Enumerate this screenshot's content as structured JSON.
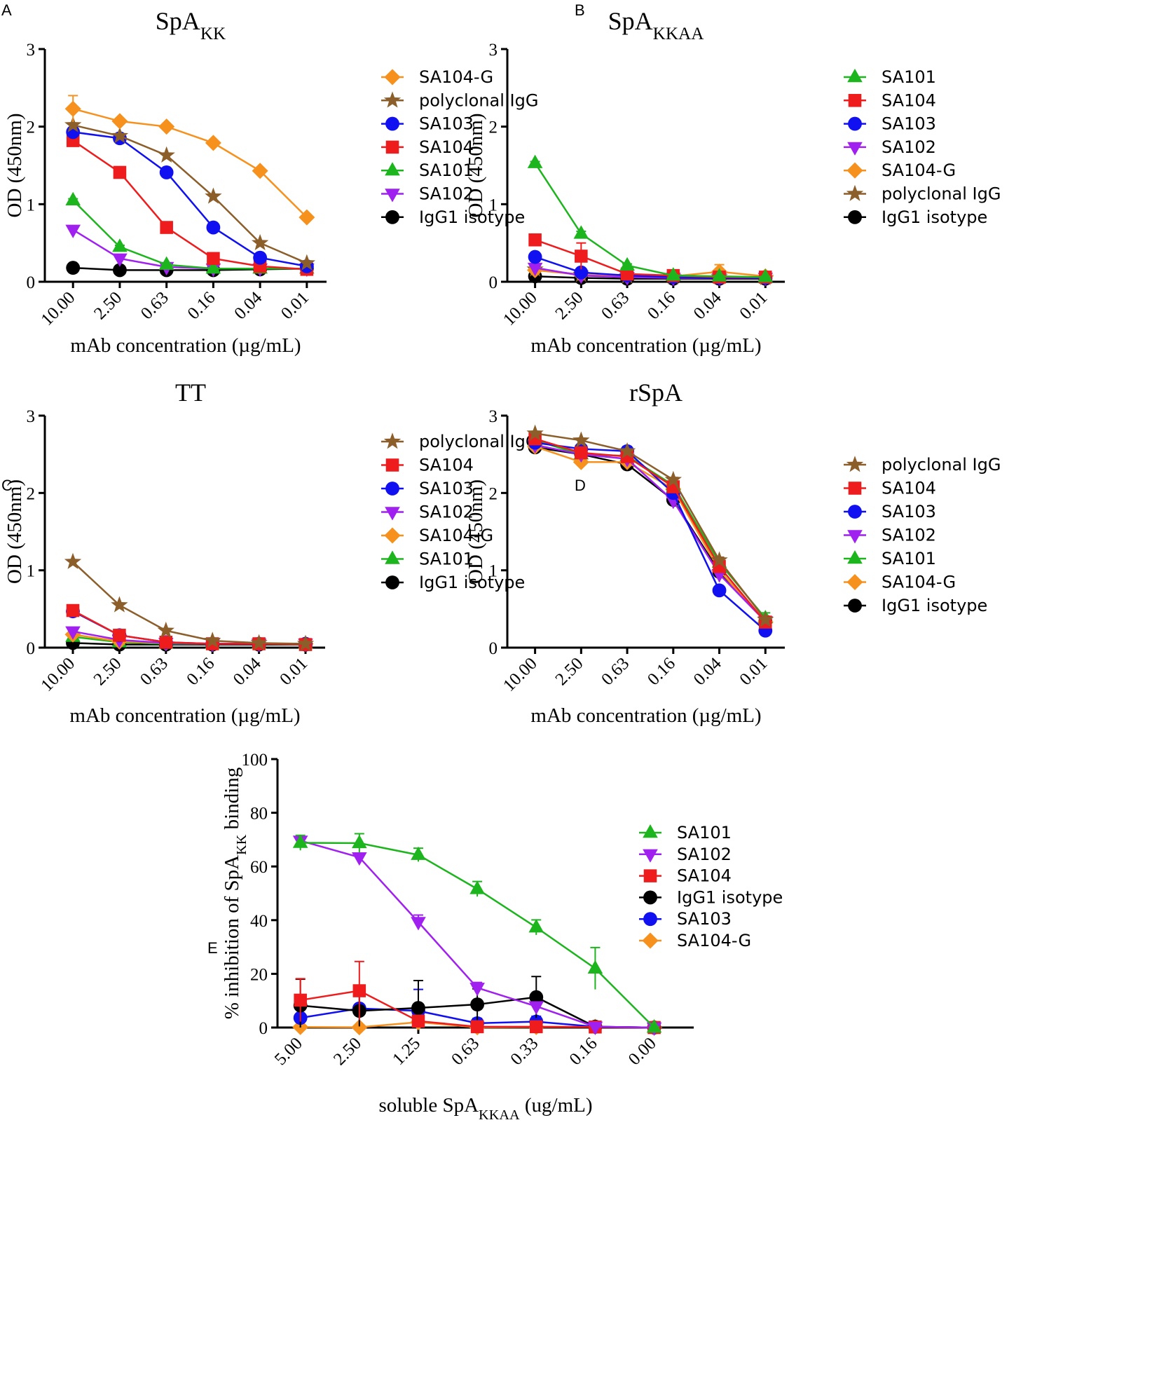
{
  "figure": {
    "panels": [
      "A",
      "B",
      "C",
      "D",
      "E"
    ]
  },
  "colors": {
    "SA104-G": "#F7911E",
    "polyclonal IgG": "#8B5E2A",
    "SA103": "#1010F0",
    "SA104": "#EE1C1C",
    "SA101": "#1DB51D",
    "SA102": "#A020F0",
    "IgG1 isotype": "#000000"
  },
  "markers": {
    "SA104-G": "diamond",
    "polyclonal IgG": "star",
    "SA103": "circle",
    "SA104": "square",
    "SA101": "triangle-up",
    "SA102": "triangle-down",
    "IgG1 isotype": "circle"
  },
  "chart_data": [
    {
      "panel": "A",
      "type": "line",
      "title": "SpA",
      "title_sub": "KK",
      "xlabel": "mAb concentration (µg/mL)",
      "ylabel": "OD (450nm)",
      "categories": [
        "10.00",
        "2.50",
        "0.63",
        "0.16",
        "0.04",
        "0.01"
      ],
      "ylim": [
        0,
        3
      ],
      "yticks": [
        0,
        1,
        2,
        3
      ],
      "legend_position": "top-right",
      "series": [
        {
          "name": "SA104-G",
          "values": [
            2.23,
            2.07,
            2.0,
            1.79,
            1.43,
            0.83
          ],
          "errors": [
            0.17,
            0.03,
            0.02,
            0.03,
            0.02,
            0.03
          ]
        },
        {
          "name": "polyclonal IgG",
          "values": [
            2.02,
            1.88,
            1.63,
            1.1,
            0.5,
            0.24
          ],
          "errors": [
            0.02,
            0.02,
            0.02,
            0.02,
            0.01,
            0.01
          ]
        },
        {
          "name": "SA103",
          "values": [
            1.93,
            1.85,
            1.41,
            0.7,
            0.31,
            0.2
          ],
          "errors": [
            0.02,
            0.02,
            0.02,
            0.03,
            0.02,
            0.01
          ]
        },
        {
          "name": "SA104",
          "values": [
            1.82,
            1.41,
            0.7,
            0.3,
            0.2,
            0.16
          ],
          "errors": [
            0.02,
            0.02,
            0.02,
            0.02,
            0.01,
            0.01
          ]
        },
        {
          "name": "SA101",
          "values": [
            1.05,
            0.45,
            0.22,
            0.17,
            0.17,
            0.17
          ],
          "errors": [
            0.02,
            0.02,
            0.01,
            0.01,
            0.01,
            0.01
          ]
        },
        {
          "name": "SA102",
          "values": [
            0.67,
            0.3,
            0.19,
            0.17,
            0.17,
            0.17
          ],
          "errors": [
            0.05,
            0.02,
            0.01,
            0.01,
            0.01,
            0.01
          ]
        },
        {
          "name": "IgG1 isotype",
          "values": [
            0.18,
            0.15,
            0.15,
            0.15,
            0.16,
            0.17
          ],
          "errors": [
            0.01,
            0.01,
            0.01,
            0.01,
            0.01,
            0.01
          ]
        }
      ]
    },
    {
      "panel": "B",
      "type": "line",
      "title": "SpA",
      "title_sub": "KKAA",
      "xlabel": "mAb concentration (µg/mL)",
      "ylabel": "OD (450nm)",
      "categories": [
        "10.00",
        "2.50",
        "0.63",
        "0.16",
        "0.04",
        "0.01"
      ],
      "ylim": [
        0,
        3
      ],
      "yticks": [
        0,
        1,
        2,
        3
      ],
      "legend_position": "top-right",
      "series": [
        {
          "name": "SA101",
          "values": [
            1.53,
            0.62,
            0.21,
            0.08,
            0.07,
            0.06
          ],
          "errors": [
            0.02,
            0.03,
            0.02,
            0.01,
            0.01,
            0.01
          ]
        },
        {
          "name": "SA104",
          "values": [
            0.54,
            0.33,
            0.1,
            0.08,
            0.06,
            0.06
          ],
          "errors": [
            0.02,
            0.17,
            0.01,
            0.01,
            0.01,
            0.01
          ]
        },
        {
          "name": "SA103",
          "values": [
            0.32,
            0.12,
            0.08,
            0.06,
            0.05,
            0.05
          ],
          "errors": [
            0.02,
            0.01,
            0.01,
            0.01,
            0.01,
            0.01
          ]
        },
        {
          "name": "SA102",
          "values": [
            0.18,
            0.08,
            0.06,
            0.05,
            0.05,
            0.05
          ],
          "errors": [
            0.02,
            0.01,
            0.01,
            0.01,
            0.01,
            0.01
          ]
        },
        {
          "name": "SA104-G",
          "values": [
            0.15,
            0.09,
            0.07,
            0.07,
            0.13,
            0.07
          ],
          "errors": [
            0.02,
            0.01,
            0.01,
            0.01,
            0.09,
            0.01
          ]
        },
        {
          "name": "polyclonal IgG",
          "values": [
            0.16,
            0.09,
            0.07,
            0.06,
            0.06,
            0.05
          ],
          "errors": [
            0.02,
            0.01,
            0.01,
            0.01,
            0.01,
            0.01
          ]
        },
        {
          "name": "IgG1 isotype",
          "values": [
            0.07,
            0.05,
            0.04,
            0.04,
            0.04,
            0.04
          ],
          "errors": [
            0.01,
            0.01,
            0.01,
            0.01,
            0.01,
            0.01
          ]
        }
      ]
    },
    {
      "panel": "C",
      "type": "line",
      "title": "TT",
      "title_sub": "",
      "xlabel": "mAb concentration (µg/mL)",
      "ylabel": "OD (450nm)",
      "categories": [
        "10.00",
        "2.50",
        "0.63",
        "0.16",
        "0.04",
        "0.01"
      ],
      "ylim": [
        0,
        3
      ],
      "yticks": [
        0,
        1,
        2,
        3
      ],
      "legend_position": "top-right",
      "series": [
        {
          "name": "polyclonal IgG",
          "values": [
            1.11,
            0.55,
            0.22,
            0.09,
            0.06,
            0.05
          ],
          "errors": [
            0.02,
            0.02,
            0.01,
            0.01,
            0.01,
            0.01
          ]
        },
        {
          "name": "SA104",
          "values": [
            0.48,
            0.16,
            0.07,
            0.05,
            0.05,
            0.04
          ],
          "errors": [
            0.02,
            0.01,
            0.01,
            0.01,
            0.01,
            0.01
          ]
        },
        {
          "name": "SA103",
          "values": [
            0.47,
            0.16,
            0.07,
            0.05,
            0.05,
            0.05
          ],
          "errors": [
            0.02,
            0.01,
            0.01,
            0.01,
            0.01,
            0.01
          ]
        },
        {
          "name": "SA102",
          "values": [
            0.21,
            0.1,
            0.06,
            0.05,
            0.05,
            0.05
          ],
          "errors": [
            0.02,
            0.01,
            0.01,
            0.01,
            0.01,
            0.01
          ]
        },
        {
          "name": "SA104-G",
          "values": [
            0.17,
            0.08,
            0.06,
            0.05,
            0.05,
            0.05
          ],
          "errors": [
            0.01,
            0.01,
            0.01,
            0.01,
            0.01,
            0.01
          ]
        },
        {
          "name": "SA101",
          "values": [
            0.14,
            0.07,
            0.05,
            0.05,
            0.05,
            0.05
          ],
          "errors": [
            0.01,
            0.01,
            0.01,
            0.01,
            0.01,
            0.01
          ]
        },
        {
          "name": "IgG1 isotype",
          "values": [
            0.06,
            0.04,
            0.04,
            0.04,
            0.04,
            0.04
          ],
          "errors": [
            0.01,
            0.01,
            0.01,
            0.01,
            0.01,
            0.01
          ]
        }
      ]
    },
    {
      "panel": "D",
      "type": "line",
      "title": "rSpA",
      "title_sub": "",
      "xlabel": "mAb concentration (µg/mL)",
      "ylabel": "OD (450nm)",
      "categories": [
        "10.00",
        "2.50",
        "0.63",
        "0.16",
        "0.04",
        "0.01"
      ],
      "ylim": [
        0,
        3
      ],
      "yticks": [
        0,
        1,
        2,
        3
      ],
      "legend_position": "top-right",
      "series": [
        {
          "name": "polyclonal IgG",
          "values": [
            2.77,
            2.68,
            2.54,
            2.17,
            1.13,
            0.36
          ],
          "errors": [
            0.02,
            0.02,
            0.03,
            0.03,
            0.04,
            0.02
          ]
        },
        {
          "name": "SA104",
          "values": [
            2.7,
            2.52,
            2.47,
            2.08,
            1.05,
            0.33
          ],
          "errors": [
            0.03,
            0.04,
            0.04,
            0.05,
            0.05,
            0.02
          ]
        },
        {
          "name": "SA103",
          "values": [
            2.65,
            2.57,
            2.54,
            2.0,
            0.74,
            0.22
          ],
          "errors": [
            0.03,
            0.04,
            0.06,
            0.06,
            0.04,
            0.02
          ]
        },
        {
          "name": "SA102",
          "values": [
            2.62,
            2.5,
            2.44,
            1.9,
            0.95,
            0.34
          ],
          "errors": [
            0.03,
            0.04,
            0.04,
            0.08,
            0.05,
            0.02
          ]
        },
        {
          "name": "SA101",
          "values": [
            2.68,
            2.5,
            2.48,
            2.1,
            1.1,
            0.38
          ],
          "errors": [
            0.03,
            0.03,
            0.04,
            0.05,
            0.05,
            0.07
          ]
        },
        {
          "name": "SA104-G",
          "values": [
            2.6,
            2.4,
            2.4,
            2.05,
            1.0,
            0.33
          ],
          "errors": [
            0.03,
            0.05,
            0.04,
            0.05,
            0.05,
            0.02
          ]
        },
        {
          "name": "IgG1 isotype",
          "values": [
            2.59,
            2.5,
            2.37,
            1.91,
            0.98,
            0.34
          ],
          "errors": [
            0.03,
            0.03,
            0.04,
            0.05,
            0.13,
            0.02
          ]
        }
      ]
    },
    {
      "panel": "E",
      "type": "line",
      "title": "",
      "title_sub": "",
      "xlabel": "soluble SpA",
      "xlabel_sub": "KKAA",
      "xlabel_suffix": " (ug/mL)",
      "ylabel": "% inhibition of SpA",
      "ylabel_sub": "KK",
      "ylabel_suffix": " binding",
      "categories": [
        "5.00",
        "2.50",
        "1.25",
        "0.63",
        "0.33",
        "0.16",
        "0.00"
      ],
      "ylim": [
        0,
        100
      ],
      "yticks": [
        0,
        20,
        40,
        60,
        80,
        100
      ],
      "legend_position": "right",
      "series": [
        {
          "name": "SA101",
          "values": [
            68.8,
            68.7,
            64.3,
            51.6,
            37.3,
            22.0,
            0.0
          ],
          "errors": [
            2.8,
            3.5,
            2.5,
            2.8,
            2.8,
            7.8,
            0.3
          ]
        },
        {
          "name": "SA102",
          "values": [
            69.6,
            63.4,
            39.3,
            14.8,
            7.9,
            0.3,
            0.0
          ],
          "errors": [
            1.2,
            1.0,
            2.6,
            2.0,
            1.5,
            0.3,
            0.2
          ]
        },
        {
          "name": "SA104",
          "values": [
            10.2,
            13.7,
            2.4,
            0.3,
            0.3,
            0.2,
            0.0
          ],
          "errors": [
            8.0,
            10.9,
            1.5,
            0.3,
            0.3,
            0.3,
            0.2
          ]
        },
        {
          "name": "IgG1 isotype",
          "values": [
            8.2,
            6.2,
            7.3,
            8.6,
            11.3,
            0.3,
            0.0
          ],
          "errors": [
            9.8,
            5.8,
            10.2,
            5.8,
            7.7,
            0.3,
            0.2
          ]
        },
        {
          "name": "SA103",
          "values": [
            3.6,
            7.1,
            6.2,
            1.6,
            2.2,
            0.3,
            0.0
          ],
          "errors": [
            4.0,
            6.2,
            8.0,
            1.8,
            2.0,
            0.3,
            0.2
          ]
        },
        {
          "name": "SA104-G",
          "values": [
            0.2,
            0.1,
            2.0,
            0.1,
            0.2,
            0.3,
            0.0
          ],
          "errors": [
            0.3,
            0.3,
            1.5,
            0.3,
            0.3,
            0.3,
            0.2
          ]
        }
      ]
    }
  ]
}
